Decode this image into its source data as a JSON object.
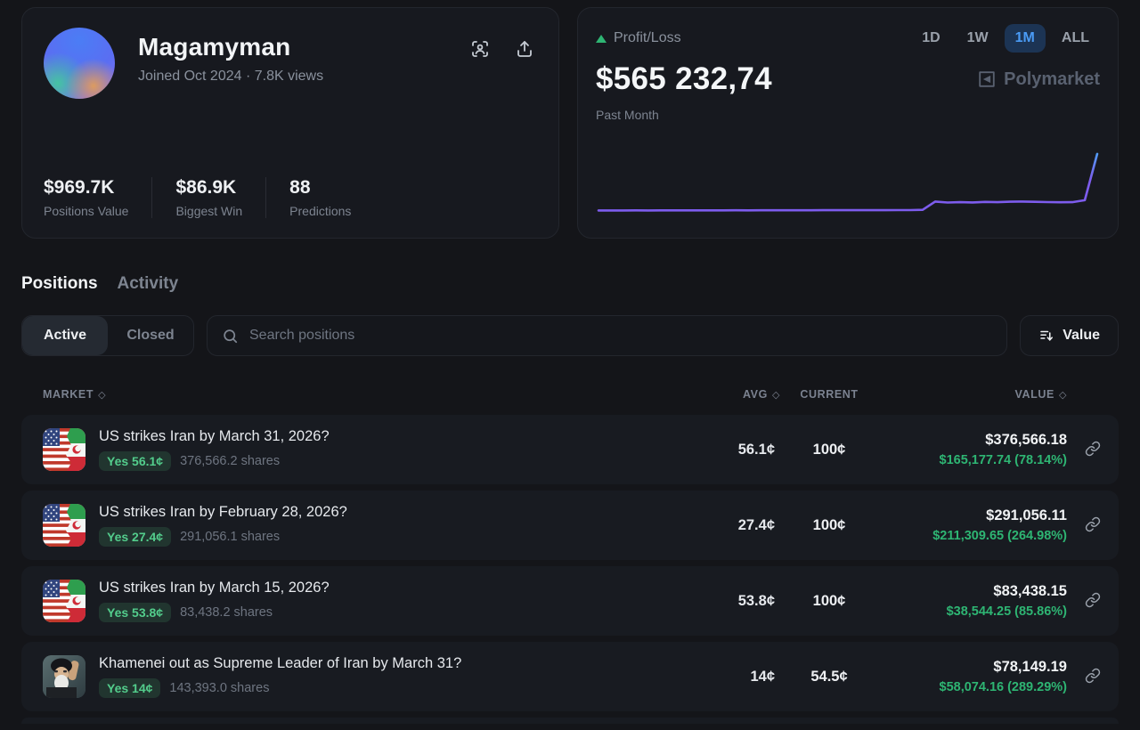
{
  "profile": {
    "name": "Magamyman",
    "meta": "Joined Oct 2024  ·  7.8K views",
    "stats": [
      {
        "value": "$969.7K",
        "label": "Positions Value"
      },
      {
        "value": "$86.9K",
        "label": "Biggest Win"
      },
      {
        "value": "88",
        "label": "Predictions"
      }
    ]
  },
  "pnl": {
    "label": "Profit/Loss",
    "amount": "$565 232,74",
    "period": "Past Month",
    "watermark": "Polymarket",
    "ranges": [
      {
        "label": "1D",
        "selected": false
      },
      {
        "label": "1W",
        "selected": false
      },
      {
        "label": "1M",
        "selected": true
      },
      {
        "label": "ALL",
        "selected": false
      }
    ]
  },
  "chart_data": {
    "type": "line",
    "title": "Profit/Loss — Past Month",
    "xlabel": "",
    "ylabel": "Profit/Loss (USD)",
    "x_range": "past 30 days, evenly spaced",
    "ylim": [
      0,
      620000
    ],
    "grid": false,
    "legend": "none",
    "final_value": 565232.74,
    "series": [
      {
        "name": "Profit/Loss ($)",
        "values": [
          60500,
          60700,
          60600,
          60900,
          60800,
          61100,
          61000,
          61300,
          61200,
          61500,
          61400,
          61700,
          61600,
          61900,
          62100,
          62000,
          62300,
          62200,
          62500,
          62700,
          62600,
          62900,
          63100,
          63000,
          63400,
          63800,
          66000,
          140000,
          131000,
          134500,
          132000,
          136500,
          134500,
          138000,
          140000,
          137500,
          135000,
          133500,
          134500,
          152000,
          565232.74
        ]
      }
    ],
    "colors": {
      "line_low": "#7d5ced",
      "line_high": "#3fb3f6"
    }
  },
  "tabs": [
    {
      "label": "Positions",
      "active": true
    },
    {
      "label": "Activity",
      "active": false
    }
  ],
  "filters": {
    "segments": [
      {
        "label": "Active",
        "selected": true
      },
      {
        "label": "Closed",
        "selected": false
      }
    ],
    "search_placeholder": "Search positions",
    "sort_label": "Value"
  },
  "table": {
    "columns": [
      {
        "label": "MARKET",
        "sort_icon": true
      },
      {
        "label": "AVG",
        "sort_icon": true
      },
      {
        "label": "CURRENT",
        "sort_icon": false
      },
      {
        "label": "VALUE",
        "sort_icon": true
      }
    ],
    "rows": [
      {
        "icon": "us-iran-flags",
        "title": "US strikes Iran by March 31, 2026?",
        "badge": "Yes 56.1¢",
        "shares": "376,566.2 shares",
        "avg": "56.1¢",
        "current": "100¢",
        "value": "$376,566.18",
        "gain": "$165,177.74 (78.14%)"
      },
      {
        "icon": "us-iran-flags",
        "title": "US strikes Iran by February 28, 2026?",
        "badge": "Yes 27.4¢",
        "shares": "291,056.1 shares",
        "avg": "27.4¢",
        "current": "100¢",
        "value": "$291,056.11",
        "gain": "$211,309.65 (264.98%)"
      },
      {
        "icon": "us-iran-flags",
        "title": "US strikes Iran by March 15, 2026?",
        "badge": "Yes 53.8¢",
        "shares": "83,438.2 shares",
        "avg": "53.8¢",
        "current": "100¢",
        "value": "$83,438.15",
        "gain": "$38,544.25 (85.86%)"
      },
      {
        "icon": "khamenei-portrait",
        "title": "Khamenei out as Supreme Leader of Iran by March 31?",
        "badge": "Yes 14¢",
        "shares": "143,393.0 shares",
        "avg": "14¢",
        "current": "54.5¢",
        "value": "$78,149.19",
        "gain": "$58,074.16 (289.29%)"
      }
    ]
  },
  "colors": {
    "page_bg": "#141519",
    "card_bg": "#17191f",
    "row_bg": "#181b21",
    "accent_green": "#2eb573",
    "badge_green": "#53cd8c",
    "selected_blue": "#4a9bf5",
    "line_purple": "#7d5ced",
    "line_blue": "#3fb3f6"
  }
}
